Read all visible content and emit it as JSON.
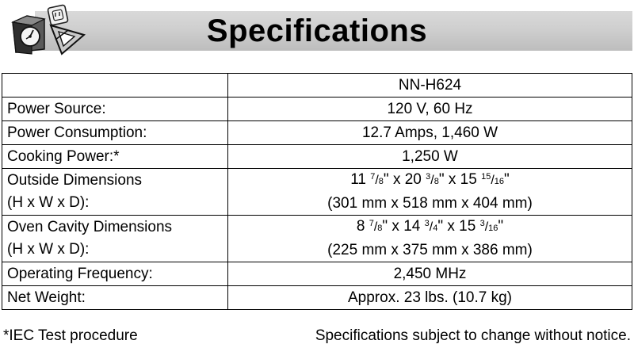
{
  "header": {
    "title": "Specifications"
  },
  "table": {
    "model": "NN-H624",
    "rows": [
      {
        "label": "Power Source:",
        "value": "120 V, 60 Hz"
      },
      {
        "label": "Power Consumption:",
        "value": "12.7 Amps, 1,460 W"
      },
      {
        "label": "Cooking Power:*",
        "value": "1,250 W"
      },
      {
        "label": "Outside Dimensions",
        "label2": "(H x W x D):",
        "dims": [
          "11",
          "7",
          "8",
          "20",
          "3",
          "8",
          "15",
          "15",
          "16"
        ],
        "value2": "(301 mm x 518 mm x 404 mm)"
      },
      {
        "label": "Oven Cavity Dimensions",
        "label2": "(H x W x D):",
        "dims": [
          "8",
          "7",
          "8",
          "14",
          "3",
          "4",
          "15",
          "3",
          "16"
        ],
        "value2": "(225 mm x 375 mm x 386 mm)"
      },
      {
        "label": "Operating Frequency:",
        "value": "2,450 MHz"
      },
      {
        "label": "Net Weight:",
        "value": "Approx. 23 lbs. (10.7 kg)"
      }
    ]
  },
  "footer": {
    "footnote": "*IEC Test procedure",
    "notice": "Specifications subject to change without notice."
  },
  "icons": [
    "microwave-gauge-icon",
    "outlet-plug-icon",
    "triangle-ruler-icon"
  ]
}
